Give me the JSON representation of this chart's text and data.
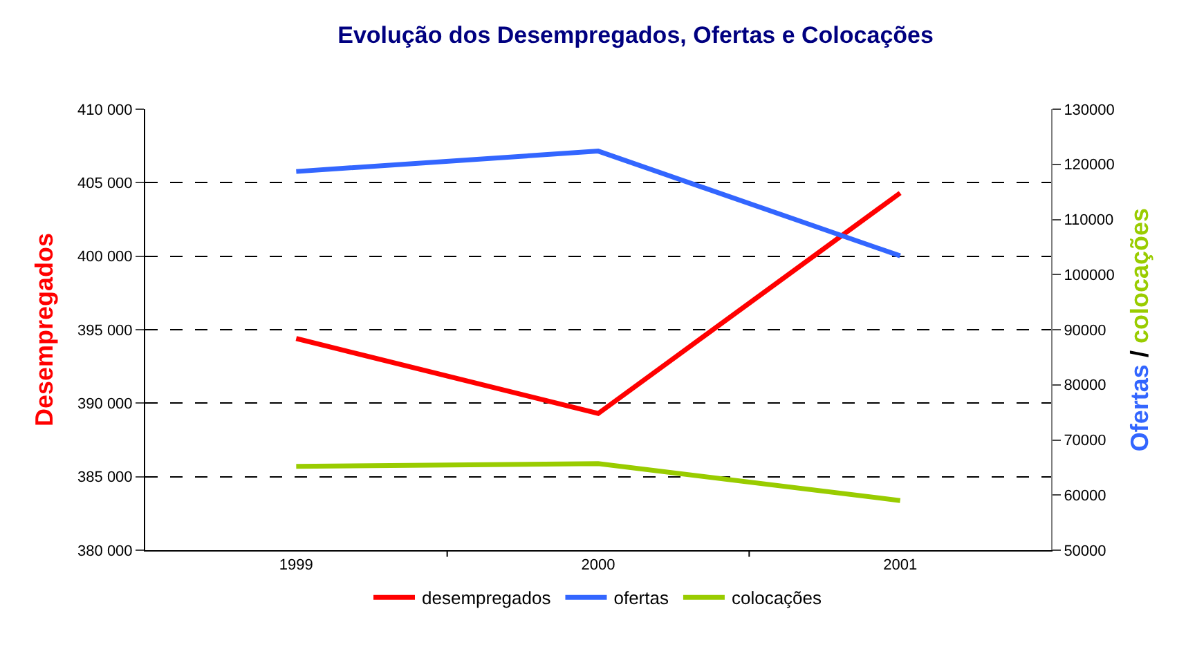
{
  "chart_data": {
    "type": "line",
    "title": "Evolução dos Desempregados, Ofertas e Colocações",
    "ylabel": "Desempregados",
    "y2label": "Ofertas / colocações",
    "categories": [
      "1999",
      "2000",
      "2001"
    ],
    "series": [
      {
        "name": "desempregados",
        "color": "#ff0000",
        "values": [
          394400,
          389300,
          404300
        ]
      },
      {
        "name": "ofertas",
        "color": "#3366ff",
        "values": [
          118700,
          122400,
          103400
        ],
        "axis": "y2"
      },
      {
        "name": "colocações",
        "color": "#99cc00",
        "values": [
          65200,
          65700,
          59000
        ],
        "axis": "y2"
      }
    ],
    "ylim": [
      380000,
      410000
    ],
    "yticks": [
      {
        "value": 380000,
        "label": "380 000"
      },
      {
        "value": 385000,
        "label": "385 000"
      },
      {
        "value": 390000,
        "label": "390 000"
      },
      {
        "value": 395000,
        "label": "395 000"
      },
      {
        "value": 400000,
        "label": "400 000"
      },
      {
        "value": 405000,
        "label": "405 000"
      },
      {
        "value": 410000,
        "label": "410 000"
      }
    ],
    "y2lim": [
      50000,
      130000
    ],
    "y2ticks": [
      50000,
      60000,
      70000,
      80000,
      90000,
      100000,
      110000,
      120000,
      130000
    ],
    "grid": "y",
    "legend": "bottom",
    "marker": "none",
    "line_style": "solid"
  }
}
